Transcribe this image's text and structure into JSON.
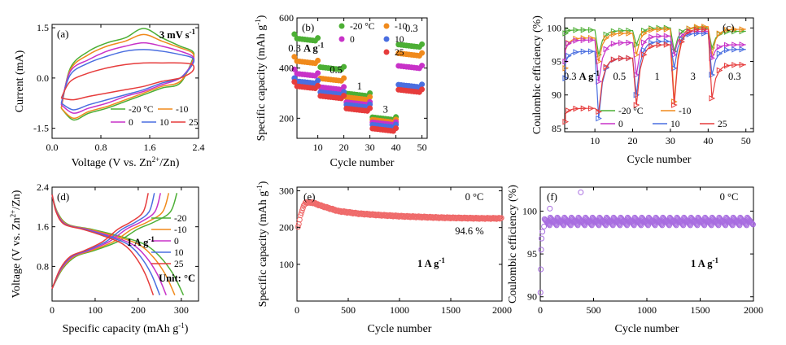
{
  "colors": {
    "m20": "#4caf35",
    "m10": "#f08a1c",
    "t0": "#c832c8",
    "t10": "#4a6ee0",
    "t25": "#e63c3c"
  },
  "chart_data": [
    {
      "panel": "(a)",
      "type": "line",
      "title": "3 mV s-1",
      "title_main": "3 mV s",
      "title_sup": "-1",
      "xlabel_parts": [
        "Voltage (V vs. Zn",
        "2+",
        "/Zn)"
      ],
      "ylabel": "Current (mA)",
      "xlim": [
        0,
        2.4
      ],
      "ylim": [
        -1.8,
        1.6
      ],
      "xticks": [
        0,
        0.8,
        1.6,
        2.4
      ],
      "xticklabels": [
        "0.0",
        "0.8",
        "1.6",
        "2.4"
      ],
      "yticks": [
        -1.5,
        0,
        1.5
      ],
      "yticklabels": [
        "-1.5",
        "0.0",
        "1.5"
      ],
      "series": [
        {
          "name": "-20 °C",
          "color": "#4caf35",
          "upper": [
            [
              0.15,
              -0.9
            ],
            [
              0.3,
              0.3
            ],
            [
              0.6,
              0.8
            ],
            [
              0.9,
              1.05
            ],
            [
              1.2,
              1.2
            ],
            [
              1.5,
              1.48
            ],
            [
              1.8,
              1.2
            ],
            [
              2.1,
              0.95
            ],
            [
              2.3,
              0.8
            ]
          ],
          "lower": [
            [
              2.3,
              0.55
            ],
            [
              2.1,
              -0.15
            ],
            [
              1.8,
              -0.3
            ],
            [
              1.5,
              -0.5
            ],
            [
              1.2,
              -0.7
            ],
            [
              0.9,
              -0.9
            ],
            [
              0.6,
              -1.05
            ],
            [
              0.35,
              -1.25
            ],
            [
              0.15,
              -0.9
            ]
          ]
        },
        {
          "name": "-10",
          "color": "#f08a1c",
          "upper": [
            [
              0.15,
              -0.9
            ],
            [
              0.3,
              0.25
            ],
            [
              0.6,
              0.7
            ],
            [
              0.9,
              0.95
            ],
            [
              1.2,
              1.1
            ],
            [
              1.5,
              1.3
            ],
            [
              1.8,
              1.1
            ],
            [
              2.1,
              0.9
            ],
            [
              2.3,
              0.75
            ]
          ],
          "lower": [
            [
              2.3,
              0.5
            ],
            [
              2.1,
              -0.1
            ],
            [
              1.8,
              -0.25
            ],
            [
              1.5,
              -0.45
            ],
            [
              1.2,
              -0.65
            ],
            [
              0.9,
              -0.85
            ],
            [
              0.6,
              -1.0
            ],
            [
              0.35,
              -1.2
            ],
            [
              0.15,
              -0.9
            ]
          ]
        },
        {
          "name": "0",
          "color": "#c832c8",
          "upper": [
            [
              0.15,
              -0.8
            ],
            [
              0.3,
              0.2
            ],
            [
              0.6,
              0.55
            ],
            [
              0.9,
              0.8
            ],
            [
              1.2,
              0.95
            ],
            [
              1.5,
              1.05
            ],
            [
              1.8,
              0.95
            ],
            [
              2.1,
              0.8
            ],
            [
              2.3,
              0.65
            ]
          ],
          "lower": [
            [
              2.3,
              0.45
            ],
            [
              2.1,
              0.0
            ],
            [
              1.8,
              -0.2
            ],
            [
              1.5,
              -0.4
            ],
            [
              1.2,
              -0.55
            ],
            [
              0.9,
              -0.75
            ],
            [
              0.6,
              -0.9
            ],
            [
              0.35,
              -1.05
            ],
            [
              0.15,
              -0.8
            ]
          ]
        },
        {
          "name": "10",
          "color": "#4a6ee0",
          "upper": [
            [
              0.15,
              -0.75
            ],
            [
              0.3,
              0.1
            ],
            [
              0.6,
              0.45
            ],
            [
              0.9,
              0.65
            ],
            [
              1.2,
              0.8
            ],
            [
              1.5,
              0.85
            ],
            [
              1.8,
              0.8
            ],
            [
              2.1,
              0.7
            ],
            [
              2.3,
              0.6
            ]
          ],
          "lower": [
            [
              2.3,
              0.4
            ],
            [
              2.1,
              0.0
            ],
            [
              1.8,
              -0.15
            ],
            [
              1.5,
              -0.35
            ],
            [
              1.2,
              -0.5
            ],
            [
              0.9,
              -0.65
            ],
            [
              0.6,
              -0.8
            ],
            [
              0.35,
              -0.95
            ],
            [
              0.15,
              -0.75
            ]
          ]
        },
        {
          "name": "25",
          "color": "#e63c3c",
          "upper": [
            [
              0.15,
              -0.6
            ],
            [
              0.3,
              -0.1
            ],
            [
              0.6,
              0.15
            ],
            [
              0.9,
              0.3
            ],
            [
              1.2,
              0.4
            ],
            [
              1.5,
              0.45
            ],
            [
              1.8,
              0.45
            ],
            [
              2.1,
              0.45
            ],
            [
              2.3,
              0.4
            ]
          ],
          "lower": [
            [
              2.3,
              0.2
            ],
            [
              2.1,
              0.0
            ],
            [
              1.8,
              -0.1
            ],
            [
              1.5,
              -0.25
            ],
            [
              1.2,
              -0.35
            ],
            [
              0.9,
              -0.45
            ],
            [
              0.6,
              -0.55
            ],
            [
              0.35,
              -0.65
            ],
            [
              0.15,
              -0.6
            ]
          ]
        }
      ]
    },
    {
      "panel": "(b)",
      "type": "scatter",
      "xlabel": "Cycle number",
      "ylabel_parts": [
        "Specific capacity  (mAh g",
        "-1",
        ")"
      ],
      "xlim": [
        2,
        52
      ],
      "ylim": [
        120,
        600
      ],
      "xticks": [
        10,
        20,
        30,
        40,
        50
      ],
      "yticks": [
        200,
        400,
        600
      ],
      "rate_labels": [
        {
          "x": 5.5,
          "y": 465,
          "main": "0.3 ",
          "bold": "A g",
          "sup": "-1"
        },
        {
          "x": 17,
          "y": 380,
          "main": "0.5"
        },
        {
          "x": 26,
          "y": 315,
          "main": "1"
        },
        {
          "x": 36,
          "y": 222,
          "main": "3"
        },
        {
          "x": 46,
          "y": 545,
          "main": "0.3"
        }
      ],
      "x": [
        1,
        2,
        3,
        4,
        5,
        6,
        7,
        8,
        9,
        10,
        11,
        12,
        13,
        14,
        15,
        16,
        17,
        18,
        19,
        20,
        21,
        22,
        23,
        24,
        25,
        26,
        27,
        28,
        29,
        30,
        31,
        32,
        33,
        34,
        35,
        36,
        37,
        38,
        39,
        40,
        41,
        42,
        43,
        44,
        45,
        46,
        47,
        48,
        49,
        50
      ],
      "series": [
        {
          "name": "-20 °C",
          "color": "#4caf35",
          "levels": [
            520,
            405,
            300,
            205,
            495
          ],
          "first": 535
        },
        {
          "name": "-10",
          "color": "#f08a1c",
          "levels": [
            430,
            360,
            285,
            195,
            460
          ],
          "first": 445
        },
        {
          "name": "0",
          "color": "#c832c8",
          "levels": [
            380,
            325,
            265,
            185,
            410
          ],
          "first": 395
        },
        {
          "name": "10",
          "color": "#4a6ee0",
          "levels": [
            350,
            305,
            255,
            175,
            335
          ],
          "first": 360
        },
        {
          "name": "25",
          "color": "#e63c3c",
          "levels": [
            330,
            290,
            240,
            160,
            315
          ],
          "first": 345
        }
      ]
    },
    {
      "panel": "(c)",
      "type": "line",
      "xlabel": "Cycle number",
      "ylabel": "Coulombic efficiency (%)",
      "xlim": [
        2,
        52
      ],
      "ylim": [
        84.5,
        101.5
      ],
      "xticks": [
        10,
        20,
        30,
        40,
        50
      ],
      "yticks": [
        85,
        90,
        95,
        100
      ],
      "rate_labels": [
        {
          "x": 6.5,
          "y": 92.3,
          "main": "0.3 ",
          "bold": "A g",
          "sup": "-1"
        },
        {
          "x": 16.5,
          "y": 92.3,
          "main": "0.5"
        },
        {
          "x": 26.5,
          "y": 92.3,
          "main": "1"
        },
        {
          "x": 36,
          "y": 92.3,
          "main": "3"
        },
        {
          "x": 47,
          "y": 92.3,
          "main": "0.3"
        }
      ],
      "series": [
        {
          "name": "-20 °C",
          "color": "#4caf35",
          "segments": [
            [
              99.2,
              99.7
            ],
            [
              96.0,
              99.6
            ],
            [
              97.5,
              100.0
            ],
            [
              96.5,
              100.0
            ],
            [
              97.0,
              99.5
            ]
          ]
        },
        {
          "name": "-10",
          "color": "#f08a1c",
          "segments": [
            [
              94.0,
              98.5
            ],
            [
              95.0,
              99.2
            ],
            [
              96.0,
              99.8
            ],
            [
              89.0,
              100.2
            ],
            [
              96.0,
              99.8
            ]
          ]
        },
        {
          "name": "0",
          "color": "#c832c8",
          "segments": [
            [
              95.0,
              98.2
            ],
            [
              92.0,
              97.8
            ],
            [
              93.0,
              98.8
            ],
            [
              96.0,
              99.5
            ],
            [
              95.5,
              97.5
            ]
          ]
        },
        {
          "name": "10",
          "color": "#4a6ee0",
          "segments": [
            [
              92.5,
              96.5
            ],
            [
              86.5,
              95.5
            ],
            [
              90.0,
              98.0
            ],
            [
              94.0,
              99.2
            ],
            [
              93.0,
              96.8
            ]
          ]
        },
        {
          "name": "25",
          "color": "#e63c3c",
          "segments": [
            [
              86.0,
              88.0
            ],
            [
              87.5,
              95.5
            ],
            [
              88.5,
              97.5
            ],
            [
              88.5,
              99.8
            ],
            [
              89.5,
              94.5
            ]
          ]
        }
      ]
    },
    {
      "panel": "(d)",
      "type": "line",
      "xlabel_parts": [
        "Specific capacity (mAh g",
        "-1",
        ")"
      ],
      "ylabel_parts": [
        "Voltage (V vs. Zn",
        "2+",
        "/Zn)"
      ],
      "xlim": [
        0,
        340
      ],
      "ylim": [
        0.1,
        2.4
      ],
      "xticks": [
        0,
        100,
        200,
        300
      ],
      "yticks": [
        0.8,
        1.6,
        2.4
      ],
      "yticklabels": [
        "0.8",
        "1.6",
        "2.4"
      ],
      "annotation_main": "1 A g",
      "annotation_sup": "-1",
      "unit_label": "Unit: °C",
      "series": [
        {
          "name": "-20",
          "color": "#4caf35",
          "cap": 305
        },
        {
          "name": "-10",
          "color": "#f08a1c",
          "cap": 285
        },
        {
          "name": "0",
          "color": "#c832c8",
          "cap": 265
        },
        {
          "name": "10",
          "color": "#4a6ee0",
          "cap": 250
        },
        {
          "name": "25",
          "color": "#e63c3c",
          "cap": 235
        }
      ]
    },
    {
      "panel": "(e)",
      "type": "scatter",
      "xlabel": "Cycle number",
      "ylabel_parts": [
        "Specific capacity  (mAh g",
        "-1",
        ")"
      ],
      "xlim": [
        0,
        2000
      ],
      "ylim": [
        0,
        310
      ],
      "xticks": [
        0,
        500,
        1000,
        1500,
        2000
      ],
      "yticks": [
        100,
        200,
        300
      ],
      "temperature": "0 °C",
      "retention": "94.6 %",
      "annotation_main": "1 A g",
      "annotation_sup": "-1",
      "trend": [
        [
          10,
          200
        ],
        [
          40,
          240
        ],
        [
          80,
          268
        ],
        [
          150,
          268
        ],
        [
          250,
          258
        ],
        [
          400,
          245
        ],
        [
          600,
          238
        ],
        [
          800,
          234
        ],
        [
          1000,
          231
        ],
        [
          1200,
          229
        ],
        [
          1400,
          227
        ],
        [
          1600,
          226
        ],
        [
          1800,
          225
        ],
        [
          2000,
          225
        ]
      ]
    },
    {
      "panel": "(f)",
      "type": "scatter",
      "xlabel": "Cycle number",
      "ylabel": "Coulombic efficiency (%)",
      "xlim": [
        0,
        2000
      ],
      "ylim": [
        89.5,
        102.8
      ],
      "xticks": [
        0,
        500,
        1000,
        1500,
        2000
      ],
      "yticks": [
        90,
        95,
        100
      ],
      "temperature": "0 °C",
      "annotation_main": "1 A g",
      "annotation_sup": "-1",
      "mean": 98.8
    }
  ]
}
